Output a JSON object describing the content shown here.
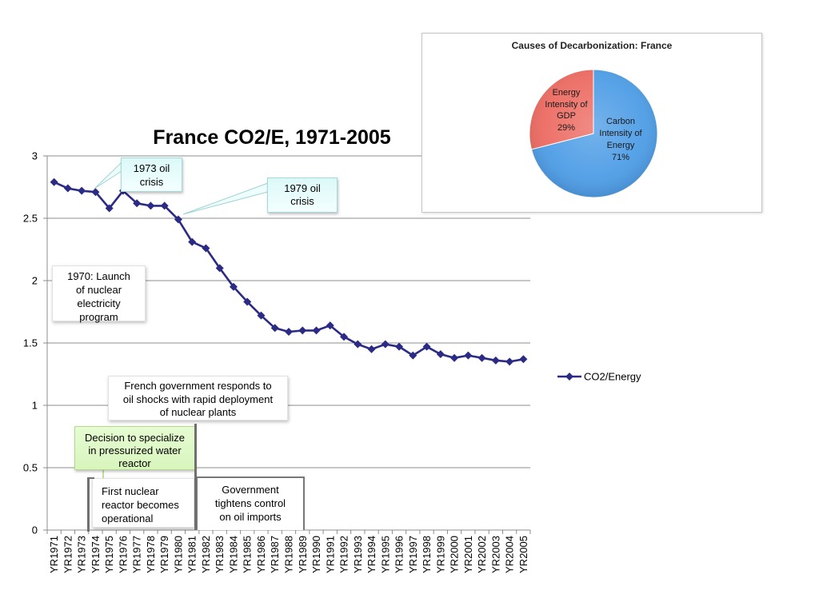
{
  "chart_data": [
    {
      "type": "line",
      "title": "France CO2/E, 1971-2005",
      "categories": [
        "YR1971",
        "YR1972",
        "YR1973",
        "YR1974",
        "YR1975",
        "YR1976",
        "YR1977",
        "YR1978",
        "YR1979",
        "YR1980",
        "YR1981",
        "YR1982",
        "YR1983",
        "YR1984",
        "YR1985",
        "YR1986",
        "YR1987",
        "YR1988",
        "YR1989",
        "YR1990",
        "YR1991",
        "YR1992",
        "YR1993",
        "YR1994",
        "YR1995",
        "YR1996",
        "YR1997",
        "YR1998",
        "YR1999",
        "YR2000",
        "YR2001",
        "YR2002",
        "YR2003",
        "YR2004",
        "YR2005"
      ],
      "series": [
        {
          "name": "CO2/Energy",
          "color": "#2b2b85",
          "values": [
            2.79,
            2.74,
            2.72,
            2.71,
            2.58,
            2.72,
            2.62,
            2.6,
            2.6,
            2.49,
            2.31,
            2.26,
            2.1,
            1.95,
            1.83,
            1.72,
            1.62,
            1.59,
            1.6,
            1.6,
            1.64,
            1.55,
            1.49,
            1.45,
            1.49,
            1.47,
            1.4,
            1.47,
            1.41,
            1.38,
            1.4,
            1.38,
            1.36,
            1.35,
            1.37
          ]
        }
      ],
      "ylim": [
        0,
        3
      ],
      "yticks": [
        0,
        0.5,
        1,
        1.5,
        2,
        2.5,
        3
      ],
      "grid": true,
      "legend": "right",
      "annotations": {
        "oil_crisis_1973": "1973 oil crisis",
        "oil_crisis_1979": "1979 oil crisis",
        "nuclear_launch": "1970: Launch of nuclear electricity program",
        "government_response": "French government responds to oil shocks with rapid deployment of nuclear plants",
        "pwr_decision": "Decision to specialize in pressurized water reactor",
        "first_reactor": "First nuclear reactor becomes operational",
        "oil_import_control": "Government tightens control on oil imports"
      }
    },
    {
      "type": "pie",
      "title": "Causes of Decarbonization: France",
      "labels": [
        "Carbon Intensity of Energy",
        "Energy Intensity of GDP"
      ],
      "values": [
        71,
        29
      ],
      "data_labels": [
        "71%",
        "29%"
      ],
      "colors": [
        "#4e9de6",
        "#ec6b62"
      ]
    }
  ]
}
